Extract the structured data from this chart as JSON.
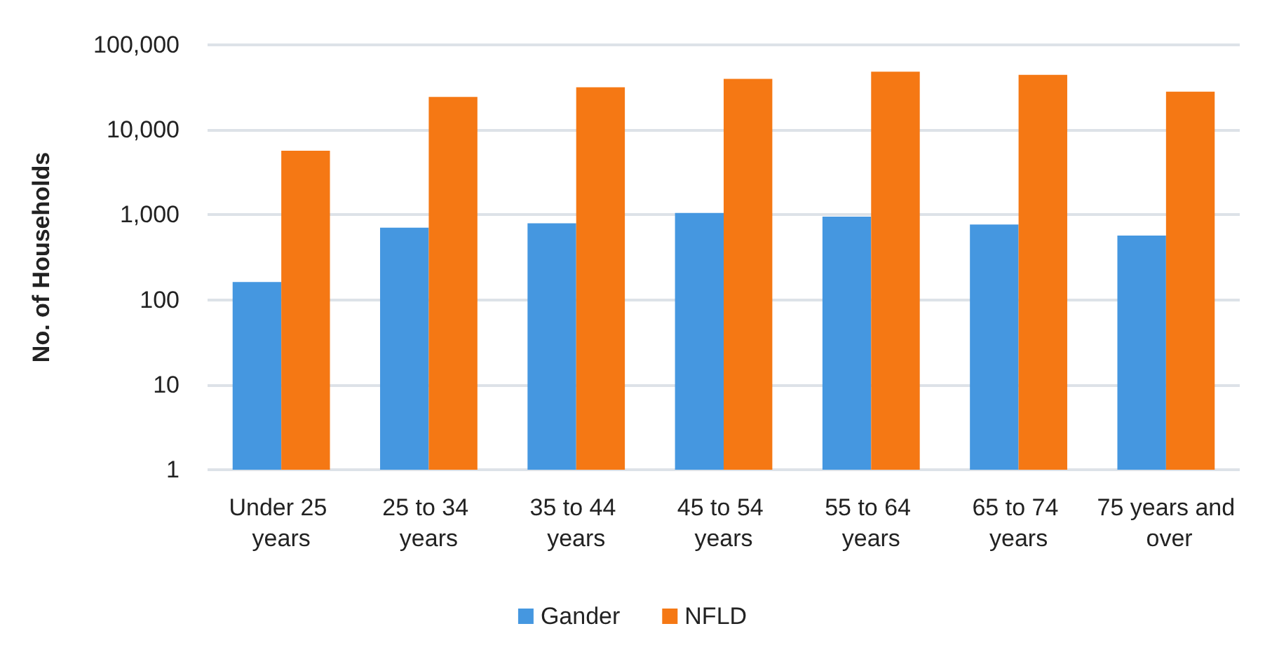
{
  "chart_data": {
    "type": "bar",
    "ylabel": "No. of Households",
    "categories": [
      "Under 25 years",
      "25 to 34 years",
      "35 to 44 years",
      "45 to 54 years",
      "55 to 64 years",
      "65 to 74 years",
      "75 years and over"
    ],
    "series": [
      {
        "name": "Gander",
        "color": "#4597e0",
        "values": [
          162,
          707,
          796,
          1050,
          950,
          770,
          570
        ]
      },
      {
        "name": "NFLD",
        "color": "#f57814",
        "values": [
          5680,
          24400,
          31700,
          39800,
          48400,
          44400,
          28200
        ]
      }
    ],
    "log": true,
    "ylim": [
      1,
      100000
    ],
    "yticks": [
      1,
      10,
      100,
      {
        "value": 1000,
        "label": "1,000"
      },
      {
        "value": 10000,
        "label": "10,000"
      },
      {
        "value": 100000,
        "label": "100,000"
      }
    ],
    "grid": "y",
    "legend": "bottom"
  }
}
